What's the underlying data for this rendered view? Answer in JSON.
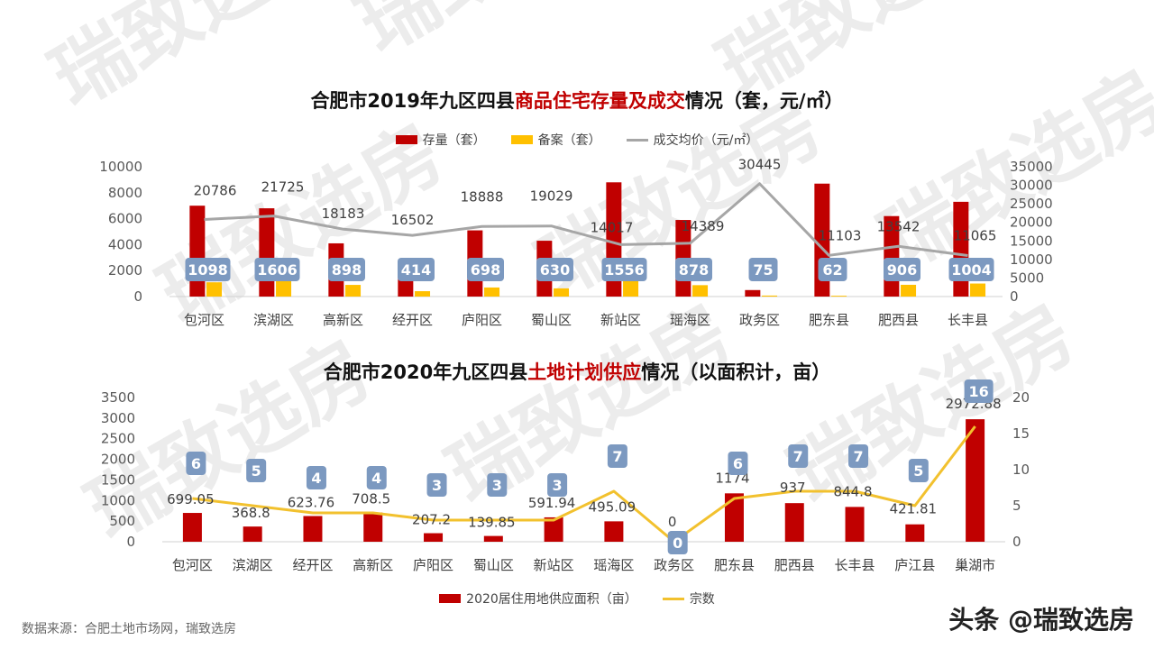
{
  "titles": {
    "chart1_pre": "合肥市2019年九区四县",
    "chart1_hl": "商品住宅存量及成交",
    "chart1_post": "情况（套，元/㎡）",
    "chart2_pre": "合肥市2020年九区四县",
    "chart2_hl": "土地计划供应",
    "chart2_post": "情况（以面积计，亩）"
  },
  "source": "数据来源：合肥土地市场网，瑞致选房",
  "brand": "头条 @瑞致选房",
  "watermark": "瑞致选房",
  "colors": {
    "red": "#c00000",
    "gold": "#ffc000",
    "gray": "#a6a6a6",
    "line_yellow": "#f2c12e",
    "tag_blue": "#7c99c0",
    "label_text": "#404040"
  },
  "chart_data": [
    {
      "type": "bar",
      "title": "合肥市2019年九区四县商品住宅存量及成交情况（套，元/㎡）",
      "categories": [
        "包河区",
        "滨湖区",
        "高新区",
        "经开区",
        "庐阳区",
        "蜀山区",
        "新站区",
        "瑶海区",
        "政务区",
        "肥东县",
        "肥西县",
        "长丰县"
      ],
      "series": [
        {
          "name": "存量（套）",
          "type": "bar",
          "axis": "left",
          "values": [
            7000,
            6800,
            4100,
            2200,
            5100,
            4300,
            8800,
            5900,
            500,
            8700,
            6200,
            7300
          ]
        },
        {
          "name": "备案（套）",
          "type": "bar",
          "axis": "left",
          "values": [
            1098,
            1606,
            898,
            414,
            698,
            630,
            1556,
            878,
            75,
            62,
            906,
            1004
          ]
        },
        {
          "name": "成交均价（元/㎡）",
          "type": "line",
          "axis": "right",
          "values": [
            20786,
            21725,
            18183,
            16502,
            18888,
            19029,
            14017,
            14389,
            30445,
            11103,
            13542,
            11065
          ]
        }
      ],
      "ylim_left": [
        0,
        10000
      ],
      "yticks_left": [
        0,
        2000,
        4000,
        6000,
        8000,
        10000
      ],
      "ylim_right": [
        0,
        35000
      ],
      "yticks_right": [
        0,
        5000,
        10000,
        15000,
        20000,
        25000,
        30000,
        35000
      ],
      "legend": "top"
    },
    {
      "type": "bar",
      "title": "合肥市2020年九区四县土地计划供应情况（以面积计，亩）",
      "categories": [
        "包河区",
        "滨湖区",
        "经开区",
        "高新区",
        "庐阳区",
        "蜀山区",
        "新站区",
        "瑶海区",
        "政务区",
        "肥东县",
        "肥西县",
        "长丰县",
        "庐江县",
        "巢湖市"
      ],
      "series": [
        {
          "name": "2020居住用地供应面积（亩）",
          "type": "bar",
          "axis": "left",
          "values": [
            699.05,
            368.8,
            623.76,
            708.5,
            207.2,
            139.85,
            591.94,
            495.09,
            0,
            1174,
            937,
            844.8,
            421.81,
            2972.88
          ]
        },
        {
          "name": "宗数",
          "type": "line",
          "axis": "right",
          "values": [
            6,
            5,
            4,
            4,
            3,
            3,
            3,
            7,
            0,
            6,
            7,
            7,
            5,
            16
          ]
        }
      ],
      "ylim_left": [
        0,
        3500
      ],
      "yticks_left": [
        0,
        500,
        1000,
        1500,
        2000,
        2500,
        3000,
        3500
      ],
      "ylim_right": [
        0,
        20
      ],
      "yticks_right": [
        0,
        5,
        10,
        15,
        20
      ],
      "legend": "bottom"
    }
  ]
}
